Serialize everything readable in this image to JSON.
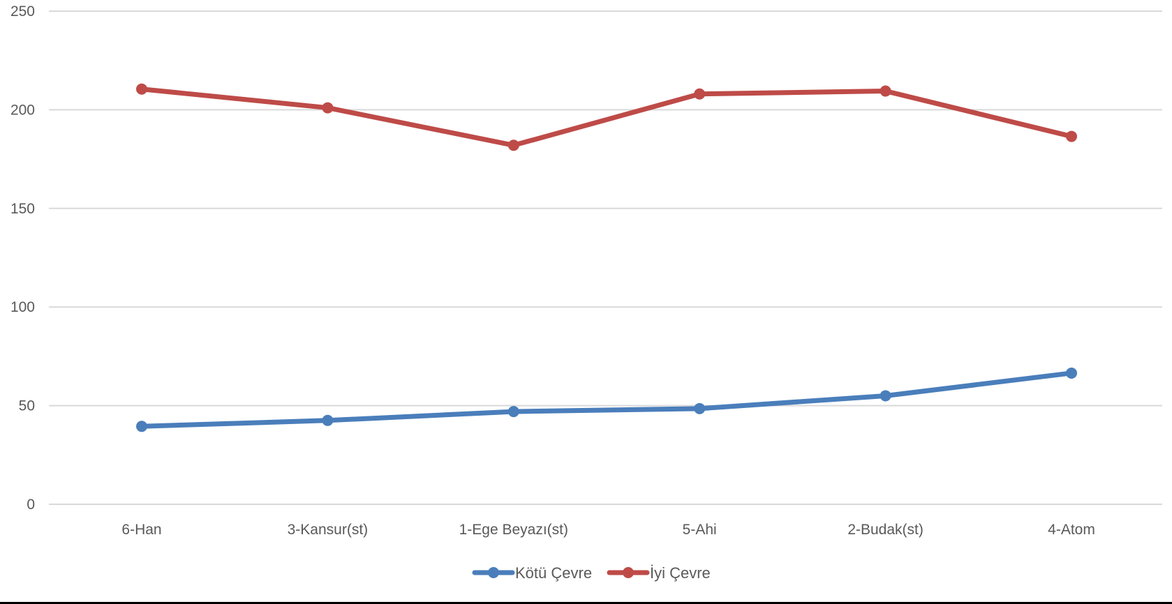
{
  "chart_data": {
    "type": "line",
    "title": "",
    "xlabel": "",
    "ylabel": "",
    "categories": [
      "6-Han",
      "3-Kansur(st)",
      "1-Ege Beyazı(st)",
      "5-Ahi",
      "2-Budak(st)",
      "4-Atom"
    ],
    "ylim": [
      0,
      250
    ],
    "yticks": [
      0,
      50,
      100,
      150,
      200,
      250
    ],
    "grid": true,
    "legend_position": "bottom-center",
    "series": [
      {
        "name": "Kötü Çevre",
        "color": "#4a7ebb",
        "values": [
          39.5,
          42.5,
          47,
          48.5,
          55,
          66.5
        ]
      },
      {
        "name": "İyi Çevre",
        "color": "#be4b48",
        "values": [
          210.5,
          201,
          182,
          208,
          209.5,
          186.5
        ]
      }
    ]
  }
}
